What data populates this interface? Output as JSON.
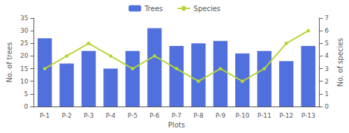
{
  "chart_data": {
    "type": "bar",
    "xlabel": "Plots",
    "ylabel": "No. of trees",
    "y2label": "No. of species",
    "categories": [
      "P-1",
      "P-2",
      "P-3",
      "P-4",
      "P-5",
      "P-6",
      "P-7",
      "P-8",
      "P-9",
      "P-10",
      "P-11",
      "P-12",
      "P-13"
    ],
    "series": [
      {
        "name": "Trees",
        "type": "bar",
        "values": [
          27,
          17,
          22,
          15,
          22,
          31,
          24,
          25,
          26,
          21,
          22,
          18,
          24
        ]
      },
      {
        "name": "Species",
        "type": "line",
        "marker": "circle",
        "axis": "y2",
        "values": [
          3,
          4,
          5,
          4,
          3,
          4,
          3,
          2,
          3,
          2,
          3,
          5,
          6
        ]
      }
    ],
    "ylim": [
      0,
      35
    ],
    "yticks": [
      0,
      5,
      10,
      15,
      20,
      25,
      30,
      35
    ],
    "y2lim": [
      0,
      7
    ],
    "y2ticks": [
      0,
      1,
      2,
      3,
      4,
      5,
      6,
      7
    ],
    "legend": "top",
    "grid": false
  }
}
